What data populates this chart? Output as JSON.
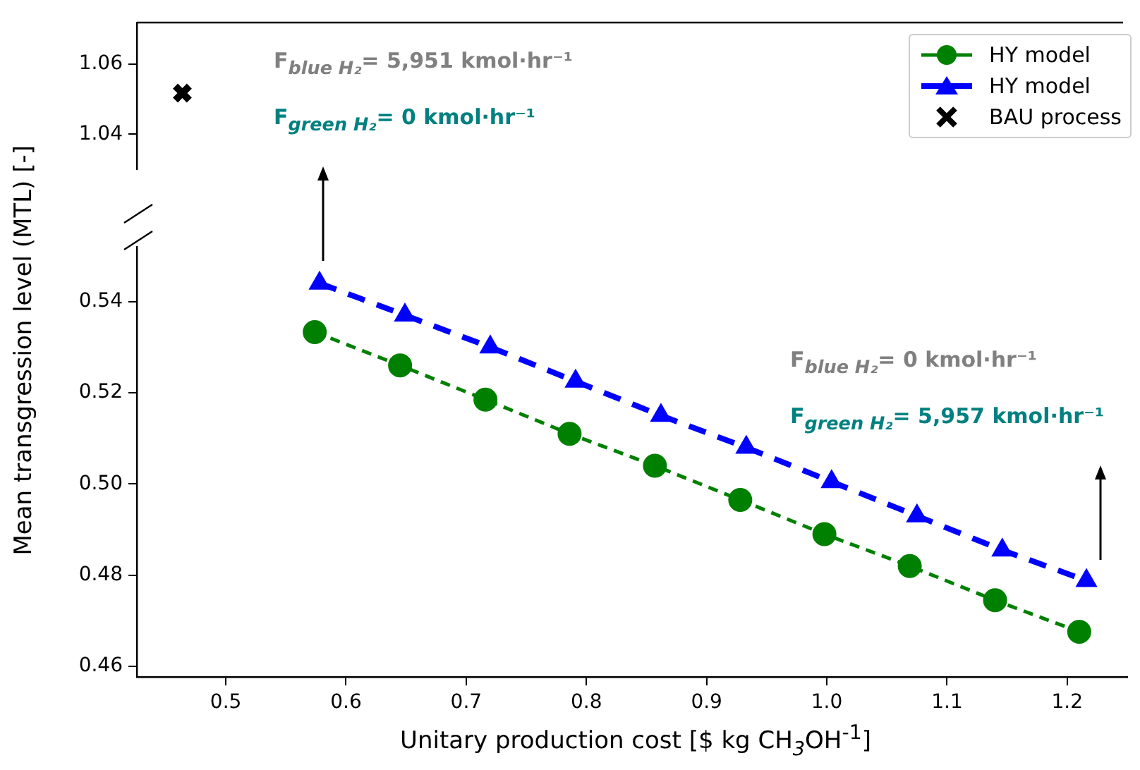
{
  "chart_data": [
    {
      "type": "scatter",
      "xlim": [
        0.426,
        1.25
      ],
      "ylim": [
        1.03,
        1.0718
      ],
      "yticks": [
        1.04,
        1.06
      ],
      "tick_labels": "y",
      "legend": "right",
      "series": [
        {
          "name": "BAU process",
          "color": "#000000",
          "marker": "cross",
          "x": [
            0.464
          ],
          "values": [
            1.0517
          ]
        }
      ]
    },
    {
      "type": "line",
      "xlabel": "Unitary production cost [$ kg CH$_{3}$OH$^{-1}$]",
      "ylabel": "Mean transgression level (MTL) [-]",
      "xlim": [
        0.426,
        1.25
      ],
      "ylim": [
        0.4577,
        0.552
      ],
      "xticks": [
        0.5,
        0.6,
        0.7,
        0.8,
        0.9,
        {
          "value": 1,
          "label": "1.0"
        },
        1.1,
        1.2
      ],
      "yticks": [
        0.46,
        0.48,
        {
          "value": 0.5,
          "label": "0.50"
        },
        0.52,
        0.54
      ],
      "series": [
        {
          "name": "HY model",
          "color": "#008000",
          "marker": "circle",
          "line_style": "dashed",
          "x": [
            0.574,
            0.645,
            0.716,
            0.786,
            0.857,
            0.928,
            0.998,
            1.069,
            1.14,
            1.21
          ],
          "values": [
            0.5333,
            0.526,
            0.5185,
            0.511,
            0.504,
            0.4965,
            0.489,
            0.482,
            0.4745,
            0.4676
          ]
        },
        {
          "name": "HY model",
          "color": "#0000ff",
          "marker": "triangle",
          "line_style": "dashed",
          "x": [
            0.578,
            0.649,
            0.72,
            0.791,
            0.862,
            0.933,
            1.004,
            1.075,
            1.146,
            1.216
          ],
          "values": [
            0.544,
            0.537,
            0.53,
            0.5225,
            0.515,
            0.508,
            0.5005,
            0.493,
            0.4855,
            0.4788
          ]
        }
      ],
      "annotations": [
        "F$_{blue H₂}$= 5,951 kmol·hr⁻¹",
        "F$_{green H₂}$= 0 kmol·hr⁻¹",
        "F$_{blue H₂}$= 0 kmol·hr⁻¹",
        "F$_{green H₂}$= 5,957 kmol·hr⁻¹"
      ]
    }
  ]
}
